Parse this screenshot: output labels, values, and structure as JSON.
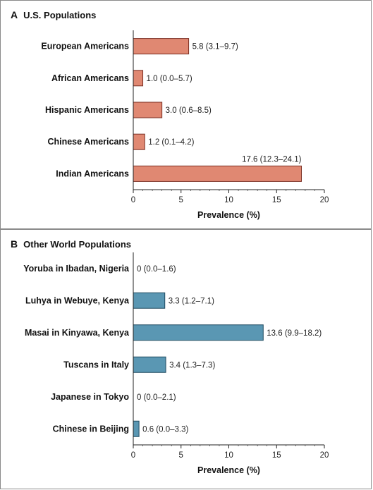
{
  "chart_data": [
    {
      "type": "bar",
      "orientation": "horizontal",
      "panel_letter": "A",
      "title": "U.S. Populations",
      "categories": [
        "European Americans",
        "African Americans",
        "Hispanic Americans",
        "Chinese Americans",
        "Indian Americans"
      ],
      "values": [
        5.8,
        1.0,
        3.0,
        1.2,
        17.6
      ],
      "value_labels": [
        "5.8 (3.1–9.7)",
        "1.0 (0.0–5.7)",
        "3.0 (0.6–8.5)",
        "1.2 (0.1–4.2)",
        "17.6 (12.3–24.1)"
      ],
      "xlabel": "Prevalence (%)",
      "xlim": [
        0,
        20
      ],
      "xticks": [
        0,
        5,
        10,
        15,
        20
      ],
      "bar_color": "#e08872",
      "bar_edge": "#7a2e22",
      "grid": false
    },
    {
      "type": "bar",
      "orientation": "horizontal",
      "panel_letter": "B",
      "title": "Other World Populations",
      "categories": [
        "Yoruba in Ibadan, Nigeria",
        "Luhya in Webuye, Kenya",
        "Masai in Kinyawa, Kenya",
        "Tuscans in Italy",
        "Japanese in Tokyo",
        "Chinese in Beijing"
      ],
      "values": [
        0,
        3.3,
        13.6,
        3.4,
        0,
        0.6
      ],
      "value_labels": [
        "0 (0.0–1.6)",
        "3.3 (1.2–7.1)",
        "13.6 (9.9–18.2)",
        "3.4 (1.3–7.3)",
        "0 (0.0–2.1)",
        "0.6 (0.0–3.3)"
      ],
      "xlabel": "Prevalence (%)",
      "xlim": [
        0,
        20
      ],
      "xticks": [
        0,
        5,
        10,
        15,
        20
      ],
      "bar_color": "#5a97b3",
      "bar_edge": "#1f4a60",
      "grid": false
    }
  ]
}
